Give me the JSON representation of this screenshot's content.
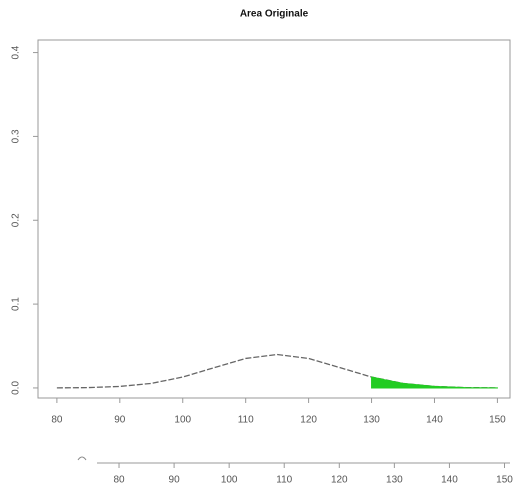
{
  "chart_data": {
    "type": "line",
    "title": "Area Originale",
    "x": [
      80,
      85,
      90,
      95,
      100,
      105,
      110,
      115,
      120,
      125,
      130,
      135,
      140,
      145,
      150
    ],
    "series": [
      {
        "color": "#666666",
        "values": [
          0.0001,
          0.0004,
          0.0018,
          0.0054,
          0.013,
          0.0242,
          0.0352,
          0.0399,
          0.0352,
          0.0242,
          0.013,
          0.0054,
          0.0018,
          0.0004,
          0.0001
        ]
      },
      {
        "color": "#22cc22",
        "fill": true,
        "values": [
          null,
          null,
          null,
          null,
          null,
          null,
          null,
          null,
          null,
          null,
          0.013,
          0.0054,
          0.0018,
          0.0004,
          0.0001
        ]
      }
    ],
    "xlim": [
      77,
      152
    ],
    "xticks": [
      80,
      90,
      100,
      110,
      120,
      130,
      140,
      150
    ],
    "ylim": [
      -0.012,
      0.415
    ],
    "yticks": [
      {
        "value": 0,
        "label": "0.0"
      },
      0.1,
      0.2,
      0.3,
      0.4
    ],
    "x2lim": [
      76,
      151
    ],
    "x2ticks": [
      80,
      90,
      100,
      110,
      120,
      130,
      140,
      150
    ]
  }
}
